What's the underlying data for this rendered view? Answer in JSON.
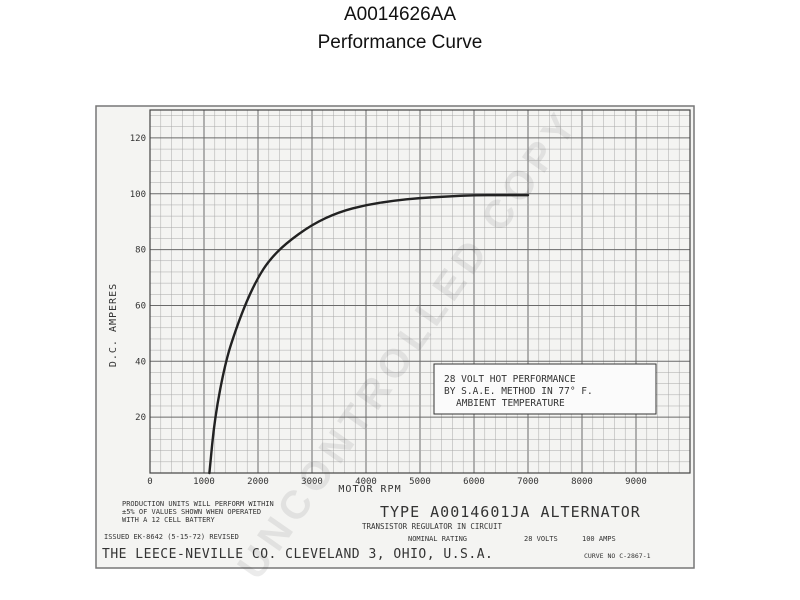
{
  "header": {
    "part_number": "A0014626AA",
    "subtitle": "Performance Curve"
  },
  "chart_data": {
    "type": "line",
    "ylabel": "D.C. AMPERES",
    "xlabel": "MOTOR RPM",
    "xlim": [
      0,
      10000
    ],
    "ylim": [
      0,
      130
    ],
    "x_ticks": [
      "0",
      "1000",
      "2000",
      "3000",
      "4000",
      "5000",
      "6000",
      "7000",
      "8000",
      "9000"
    ],
    "y_ticks": [
      "20",
      "40",
      "60",
      "80",
      "100",
      "120"
    ],
    "grid": true,
    "series": [
      {
        "x": [
          1100,
          1200,
          1400,
          1600,
          1800,
          2000,
          2200,
          2500,
          3000,
          3500,
          4000,
          4500,
          5000,
          5500,
          6000,
          6500,
          7000
        ],
        "y": [
          0,
          20,
          40,
          52,
          62,
          70,
          76,
          82,
          89,
          93.5,
          96,
          97.5,
          98.5,
          99,
          99.5,
          99.5,
          99.5
        ]
      }
    ],
    "annotation": {
      "lines": [
        "28 VOLT HOT PERFORMANCE",
        "BY S.A.E. METHOD IN 77° F.",
        "AMBIENT TEMPERATURE"
      ]
    }
  },
  "footer": {
    "production_note": [
      "PRODUCTION UNITS WILL PERFORM WITHIN",
      "±5% OF VALUES SHOWN WHEN OPERATED",
      "WITH A 12 CELL BATTERY"
    ],
    "issued": "ISSUED EK-8642 (5-15-72) REVISED",
    "type_label": "TYPE A0014601JA ALTERNATOR",
    "regulator": "TRANSISTOR REGULATOR IN CIRCUIT",
    "rating_label": "NOMINAL RATING",
    "rating_volts": "28 VOLTS",
    "rating_amps": "100 AMPS",
    "company": "THE LEECE-NEVILLE CO. CLEVELAND 3, OHIO, U.S.A.",
    "curve_no": "CURVE NO C-2867-1"
  },
  "watermark": "UNCONTROLLED COPY",
  "colors": {
    "grid": "#a8a8a8",
    "grid_major": "#6a6a6a",
    "curve": "#222222",
    "paper": "#f4f4f2"
  }
}
